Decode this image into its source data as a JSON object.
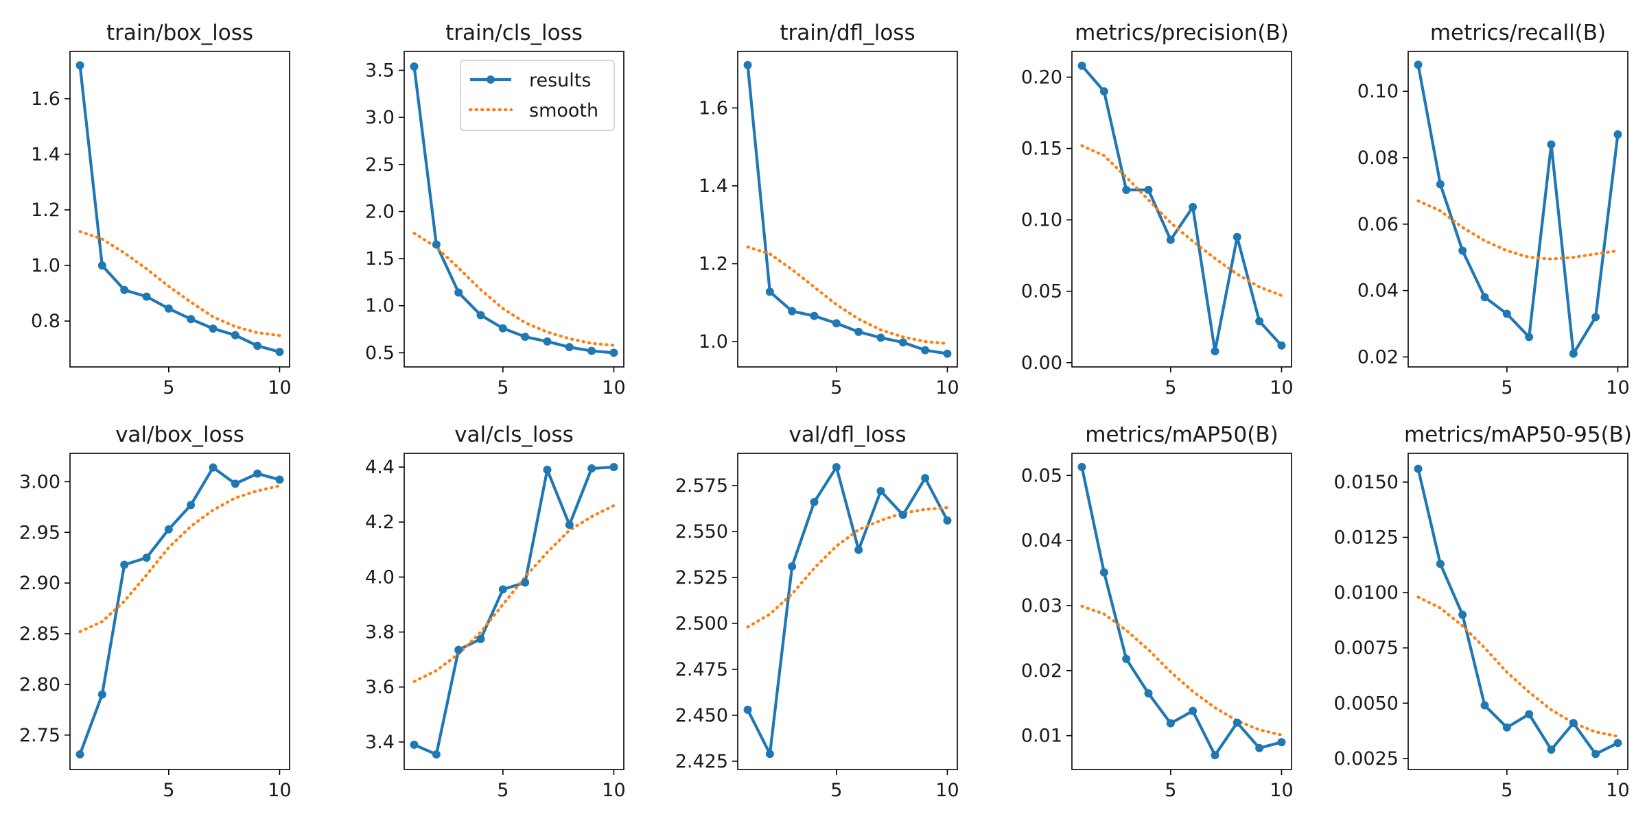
{
  "colors": {
    "results": "#1f77b4",
    "smooth": "#ff7f0e",
    "axis": "#000000"
  },
  "legend": {
    "placement": "upper-right",
    "panel": 1,
    "entries": [
      "results",
      "smooth"
    ]
  },
  "chart_data": [
    {
      "type": "line",
      "title": "train/box_loss",
      "x": [
        1,
        2,
        3,
        4,
        5,
        6,
        7,
        8,
        9,
        10
      ],
      "xticks": [
        5,
        10
      ],
      "xtick_labels": [
        "5",
        "10"
      ],
      "xlim": [
        0.55,
        10.45
      ],
      "ylim": [
        0.635,
        1.77
      ],
      "yticks": [
        0.8,
        1.0,
        1.2,
        1.4,
        1.6
      ],
      "ytick_labels": [
        "0.8",
        "1.0",
        "1.2",
        "1.4",
        "1.6"
      ],
      "series": [
        {
          "name": "results",
          "values": [
            1.72,
            1.0,
            0.912,
            0.888,
            0.845,
            0.807,
            0.773,
            0.749,
            0.711,
            0.689
          ]
        },
        {
          "name": "smooth",
          "values": [
            1.122,
            1.095,
            1.045,
            0.988,
            0.925,
            0.868,
            0.815,
            0.78,
            0.758,
            0.748
          ]
        }
      ]
    },
    {
      "type": "line",
      "title": "train/cls_loss",
      "x": [
        1,
        2,
        3,
        4,
        5,
        6,
        7,
        8,
        9,
        10
      ],
      "xticks": [
        5,
        10
      ],
      "xtick_labels": [
        "5",
        "10"
      ],
      "xlim": [
        0.55,
        10.45
      ],
      "ylim": [
        0.35,
        3.7
      ],
      "yticks": [
        0.5,
        1.0,
        1.5,
        2.0,
        2.5,
        3.0,
        3.5
      ],
      "ytick_labels": [
        "0.5",
        "1.0",
        "1.5",
        "2.0",
        "2.5",
        "3.0",
        "3.5"
      ],
      "series": [
        {
          "name": "results",
          "values": [
            3.54,
            1.65,
            1.14,
            0.9,
            0.76,
            0.67,
            0.62,
            0.56,
            0.52,
            0.5
          ]
        },
        {
          "name": "smooth",
          "values": [
            1.77,
            1.62,
            1.4,
            1.17,
            0.97,
            0.82,
            0.72,
            0.65,
            0.6,
            0.58
          ]
        }
      ]
    },
    {
      "type": "line",
      "title": "train/dfl_loss",
      "x": [
        1,
        2,
        3,
        4,
        5,
        6,
        7,
        8,
        9,
        10
      ],
      "xticks": [
        5,
        10
      ],
      "xtick_labels": [
        "5",
        "10"
      ],
      "xlim": [
        0.55,
        10.45
      ],
      "ylim": [
        0.935,
        1.745
      ],
      "yticks": [
        1.0,
        1.2,
        1.4,
        1.6
      ],
      "ytick_labels": [
        "1.0",
        "1.2",
        "1.4",
        "1.6"
      ],
      "series": [
        {
          "name": "results",
          "values": [
            1.71,
            1.128,
            1.078,
            1.066,
            1.047,
            1.025,
            1.01,
            0.998,
            0.978,
            0.969
          ]
        },
        {
          "name": "smooth",
          "values": [
            1.243,
            1.225,
            1.185,
            1.14,
            1.095,
            1.058,
            1.03,
            1.012,
            1.0,
            0.995
          ]
        }
      ]
    },
    {
      "type": "line",
      "title": "metrics/precision(B)",
      "x": [
        1,
        2,
        3,
        4,
        5,
        6,
        7,
        8,
        9,
        10
      ],
      "xticks": [
        5,
        10
      ],
      "xtick_labels": [
        "5",
        "10"
      ],
      "xlim": [
        0.55,
        10.45
      ],
      "ylim": [
        -0.003,
        0.218
      ],
      "yticks": [
        0.0,
        0.05,
        0.1,
        0.15,
        0.2
      ],
      "ytick_labels": [
        "0.00",
        "0.05",
        "0.10",
        "0.15",
        "0.20"
      ],
      "series": [
        {
          "name": "results",
          "values": [
            0.208,
            0.19,
            0.121,
            0.121,
            0.086,
            0.109,
            0.008,
            0.088,
            0.029,
            0.012
          ]
        },
        {
          "name": "smooth",
          "values": [
            0.152,
            0.145,
            0.13,
            0.114,
            0.098,
            0.085,
            0.073,
            0.062,
            0.053,
            0.047
          ]
        }
      ]
    },
    {
      "type": "line",
      "title": "metrics/recall(B)",
      "x": [
        1,
        2,
        3,
        4,
        5,
        6,
        7,
        8,
        9,
        10
      ],
      "xticks": [
        5,
        10
      ],
      "xtick_labels": [
        "5",
        "10"
      ],
      "xlim": [
        0.55,
        10.45
      ],
      "ylim": [
        0.017,
        0.112
      ],
      "yticks": [
        0.02,
        0.04,
        0.06,
        0.08,
        0.1
      ],
      "ytick_labels": [
        "0.02",
        "0.04",
        "0.06",
        "0.08",
        "0.10"
      ],
      "series": [
        {
          "name": "results",
          "values": [
            0.108,
            0.072,
            0.052,
            0.038,
            0.033,
            0.026,
            0.084,
            0.021,
            0.032,
            0.087
          ]
        },
        {
          "name": "smooth",
          "values": [
            0.067,
            0.064,
            0.059,
            0.055,
            0.052,
            0.05,
            0.0495,
            0.05,
            0.051,
            0.052
          ]
        }
      ]
    },
    {
      "type": "line",
      "title": "val/box_loss",
      "x": [
        1,
        2,
        3,
        4,
        5,
        6,
        7,
        8,
        9,
        10
      ],
      "xticks": [
        5,
        10
      ],
      "xtick_labels": [
        "5",
        "10"
      ],
      "xlim": [
        0.55,
        10.45
      ],
      "ylim": [
        2.716,
        3.028
      ],
      "yticks": [
        2.75,
        2.8,
        2.85,
        2.9,
        2.95,
        3.0
      ],
      "ytick_labels": [
        "2.75",
        "2.80",
        "2.85",
        "2.90",
        "2.95",
        "3.00"
      ],
      "series": [
        {
          "name": "results",
          "values": [
            2.731,
            2.79,
            2.918,
            2.925,
            2.953,
            2.977,
            3.014,
            2.998,
            3.008,
            3.002
          ]
        },
        {
          "name": "smooth",
          "values": [
            2.852,
            2.862,
            2.882,
            2.908,
            2.935,
            2.956,
            2.972,
            2.984,
            2.991,
            2.996
          ]
        }
      ]
    },
    {
      "type": "line",
      "title": "val/cls_loss",
      "x": [
        1,
        2,
        3,
        4,
        5,
        6,
        7,
        8,
        9,
        10
      ],
      "xticks": [
        5,
        10
      ],
      "xtick_labels": [
        "5",
        "10"
      ],
      "xlim": [
        0.55,
        10.45
      ],
      "ylim": [
        3.3,
        4.45
      ],
      "yticks": [
        3.4,
        3.6,
        3.8,
        4.0,
        4.2,
        4.4
      ],
      "ytick_labels": [
        "3.4",
        "3.6",
        "3.8",
        "4.0",
        "4.2",
        "4.4"
      ],
      "series": [
        {
          "name": "results",
          "values": [
            3.39,
            3.355,
            3.735,
            3.775,
            3.955,
            3.98,
            4.39,
            4.19,
            4.395,
            4.4
          ]
        },
        {
          "name": "smooth",
          "values": [
            3.62,
            3.66,
            3.72,
            3.8,
            3.9,
            4.0,
            4.09,
            4.17,
            4.22,
            4.26
          ]
        }
      ]
    },
    {
      "type": "line",
      "title": "val/dfl_loss",
      "x": [
        1,
        2,
        3,
        4,
        5,
        6,
        7,
        8,
        9,
        10
      ],
      "xticks": [
        5,
        10
      ],
      "xtick_labels": [
        "5",
        "10"
      ],
      "xlim": [
        0.55,
        10.45
      ],
      "ylim": [
        2.4205,
        2.5925
      ],
      "yticks": [
        2.425,
        2.45,
        2.475,
        2.5,
        2.525,
        2.55,
        2.575
      ],
      "ytick_labels": [
        "2.425",
        "2.450",
        "2.475",
        "2.500",
        "2.525",
        "2.550",
        "2.575"
      ],
      "series": [
        {
          "name": "results",
          "values": [
            2.453,
            2.429,
            2.531,
            2.566,
            2.585,
            2.54,
            2.572,
            2.559,
            2.579,
            2.556
          ]
        },
        {
          "name": "smooth",
          "values": [
            2.498,
            2.505,
            2.516,
            2.53,
            2.542,
            2.551,
            2.556,
            2.56,
            2.562,
            2.563
          ]
        }
      ]
    },
    {
      "type": "line",
      "title": "metrics/mAP50(B)",
      "x": [
        1,
        2,
        3,
        4,
        5,
        6,
        7,
        8,
        9,
        10
      ],
      "xticks": [
        5,
        10
      ],
      "xtick_labels": [
        "5",
        "10"
      ],
      "xlim": [
        0.55,
        10.45
      ],
      "ylim": [
        0.0048,
        0.0534
      ],
      "yticks": [
        0.01,
        0.02,
        0.03,
        0.04,
        0.05
      ],
      "ytick_labels": [
        "0.01",
        "0.02",
        "0.03",
        "0.04",
        "0.05"
      ],
      "series": [
        {
          "name": "results",
          "values": [
            0.0513,
            0.0351,
            0.0218,
            0.0165,
            0.0119,
            0.0138,
            0.007,
            0.012,
            0.0081,
            0.009
          ]
        },
        {
          "name": "smooth",
          "values": [
            0.0299,
            0.0287,
            0.0262,
            0.0232,
            0.0198,
            0.0168,
            0.0143,
            0.0123,
            0.0109,
            0.0101
          ]
        }
      ]
    },
    {
      "type": "line",
      "title": "metrics/mAP50-95(B)",
      "x": [
        1,
        2,
        3,
        4,
        5,
        6,
        7,
        8,
        9,
        10
      ],
      "xticks": [
        5,
        10
      ],
      "xtick_labels": [
        "5",
        "10"
      ],
      "xlim": [
        0.55,
        10.45
      ],
      "ylim": [
        0.002,
        0.0163
      ],
      "yticks": [
        0.0025,
        0.005,
        0.0075,
        0.01,
        0.0125,
        0.015
      ],
      "ytick_labels": [
        "0.0025",
        "0.0050",
        "0.0075",
        "0.0100",
        "0.0125",
        "0.0150"
      ],
      "series": [
        {
          "name": "results",
          "values": [
            0.0156,
            0.0113,
            0.009,
            0.0049,
            0.0039,
            0.0045,
            0.0029,
            0.0041,
            0.0027,
            0.0032
          ]
        },
        {
          "name": "smooth",
          "values": [
            0.0098,
            0.0093,
            0.0085,
            0.0075,
            0.0064,
            0.0055,
            0.0047,
            0.0041,
            0.0037,
            0.0035
          ]
        }
      ]
    }
  ]
}
